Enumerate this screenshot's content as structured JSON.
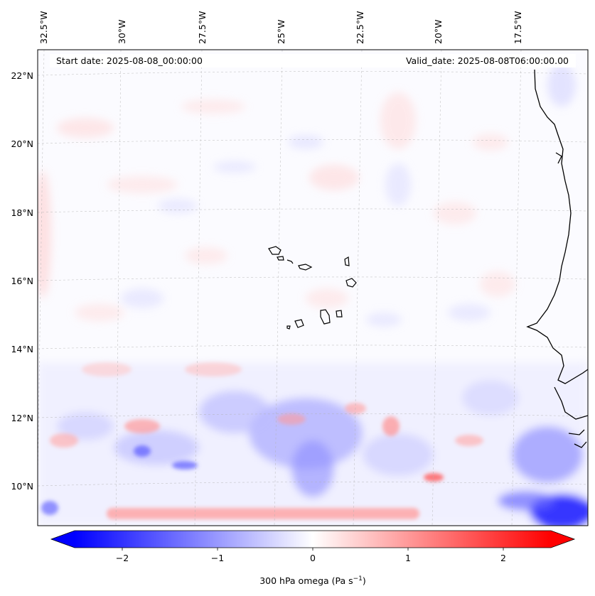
{
  "header": {
    "start_date": "Start date: 2025-08-08_00:00:00",
    "valid_date": "Valid_date: 2025-08-08T06:00:00.00"
  },
  "longitude_labels": [
    "32.5°W",
    "30°W",
    "27.5°W",
    "25°W",
    "22.5°W",
    "20°W",
    "17.5°W"
  ],
  "latitude_labels": [
    "22°N",
    "20°N",
    "18°N",
    "16°N",
    "14°N",
    "12°N",
    "10°N"
  ],
  "colorbar": {
    "tick_labels": [
      "−2",
      "−1",
      "0",
      "1",
      "2"
    ],
    "tick_values": [
      -2,
      -1,
      0,
      1,
      2
    ],
    "range": [
      -2.5,
      2.5
    ],
    "label_main": "300 hPa omega (Pa s",
    "label_exp": "−1",
    "label_close": ")",
    "colors": {
      "negative": "#0000ff",
      "zero": "#ffffff",
      "positive": "#ff0000"
    }
  },
  "map_colors": {
    "coastline": "#000000",
    "gridline": "#b0b0b0",
    "low_omega": "#2f3cff",
    "high_omega": "#ff5050"
  }
}
